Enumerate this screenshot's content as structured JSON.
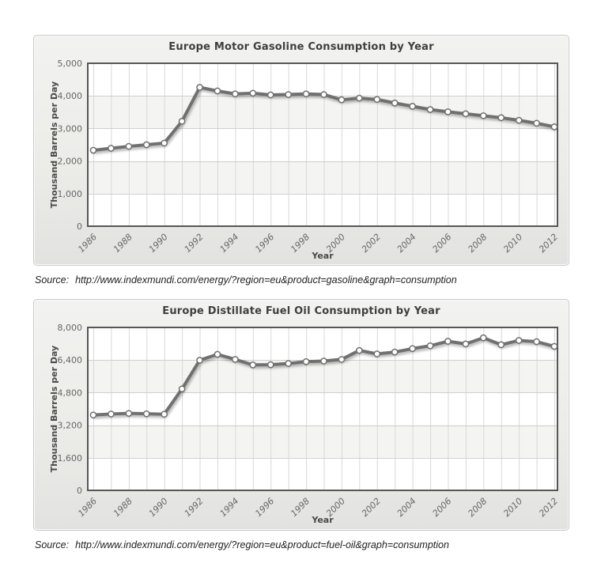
{
  "style": {
    "line_color": "#6f6f6f",
    "marker_fill": "#ffffff",
    "marker_stroke": "#6f6f6f",
    "band_color": "#f4f4f2",
    "grid_color": "#d9d9d9",
    "plot_border_color": "#575757",
    "plot_bg": "#ffffff",
    "tick_text_color": "#666666",
    "axis_title_color": "#4a4a4a"
  },
  "sources": [
    {
      "label": "Source:",
      "url": "http://www.indexmundi.com/energy/?region=eu&product=gasoline&graph=consumption"
    },
    {
      "label": "Source:",
      "url": "http://www.indexmundi.com/energy/?region=eu&product=fuel-oil&graph=consumption"
    }
  ],
  "chart_data": [
    {
      "type": "line",
      "title": "Europe Motor Gasoline Consumption by Year",
      "xlabel": "Year",
      "ylabel": "Thousand Barrels per Day",
      "x": [
        1986,
        1987,
        1988,
        1989,
        1990,
        1991,
        1992,
        1993,
        1994,
        1995,
        1996,
        1997,
        1998,
        1999,
        2000,
        2001,
        2002,
        2003,
        2004,
        2005,
        2006,
        2007,
        2008,
        2009,
        2010,
        2011,
        2012
      ],
      "series": [
        {
          "name": "Motor Gasoline Consumption",
          "values": [
            2330,
            2390,
            2450,
            2500,
            2550,
            3220,
            4260,
            4150,
            4060,
            4080,
            4030,
            4040,
            4060,
            4040,
            3880,
            3930,
            3890,
            3780,
            3680,
            3580,
            3510,
            3450,
            3390,
            3330,
            3250,
            3160,
            3050
          ]
        }
      ],
      "ylim": [
        0,
        5000
      ],
      "yticks": [
        0,
        1000,
        2000,
        3000,
        4000,
        5000
      ],
      "xtick_every": 2,
      "grid": true,
      "legend": "none"
    },
    {
      "type": "line",
      "title": "Europe Distillate Fuel Oil Consumption by Year",
      "xlabel": "Year",
      "ylabel": "Thousand Barrels per Day",
      "x": [
        1986,
        1987,
        1988,
        1989,
        1990,
        1991,
        1992,
        1993,
        1994,
        1995,
        1996,
        1997,
        1998,
        1999,
        2000,
        2001,
        2002,
        2003,
        2004,
        2005,
        2006,
        2007,
        2008,
        2009,
        2010,
        2011,
        2012
      ],
      "series": [
        {
          "name": "Distillate Fuel Oil Consumption",
          "values": [
            3700,
            3750,
            3780,
            3760,
            3740,
            4980,
            6390,
            6680,
            6430,
            6160,
            6170,
            6230,
            6320,
            6350,
            6430,
            6870,
            6700,
            6790,
            6960,
            7100,
            7320,
            7190,
            7490,
            7150,
            7360,
            7300,
            7070
          ]
        }
      ],
      "ylim": [
        0,
        8000
      ],
      "yticks": [
        0,
        1600,
        3200,
        4800,
        6400,
        8000
      ],
      "xtick_every": 2,
      "grid": true,
      "legend": "none"
    }
  ]
}
